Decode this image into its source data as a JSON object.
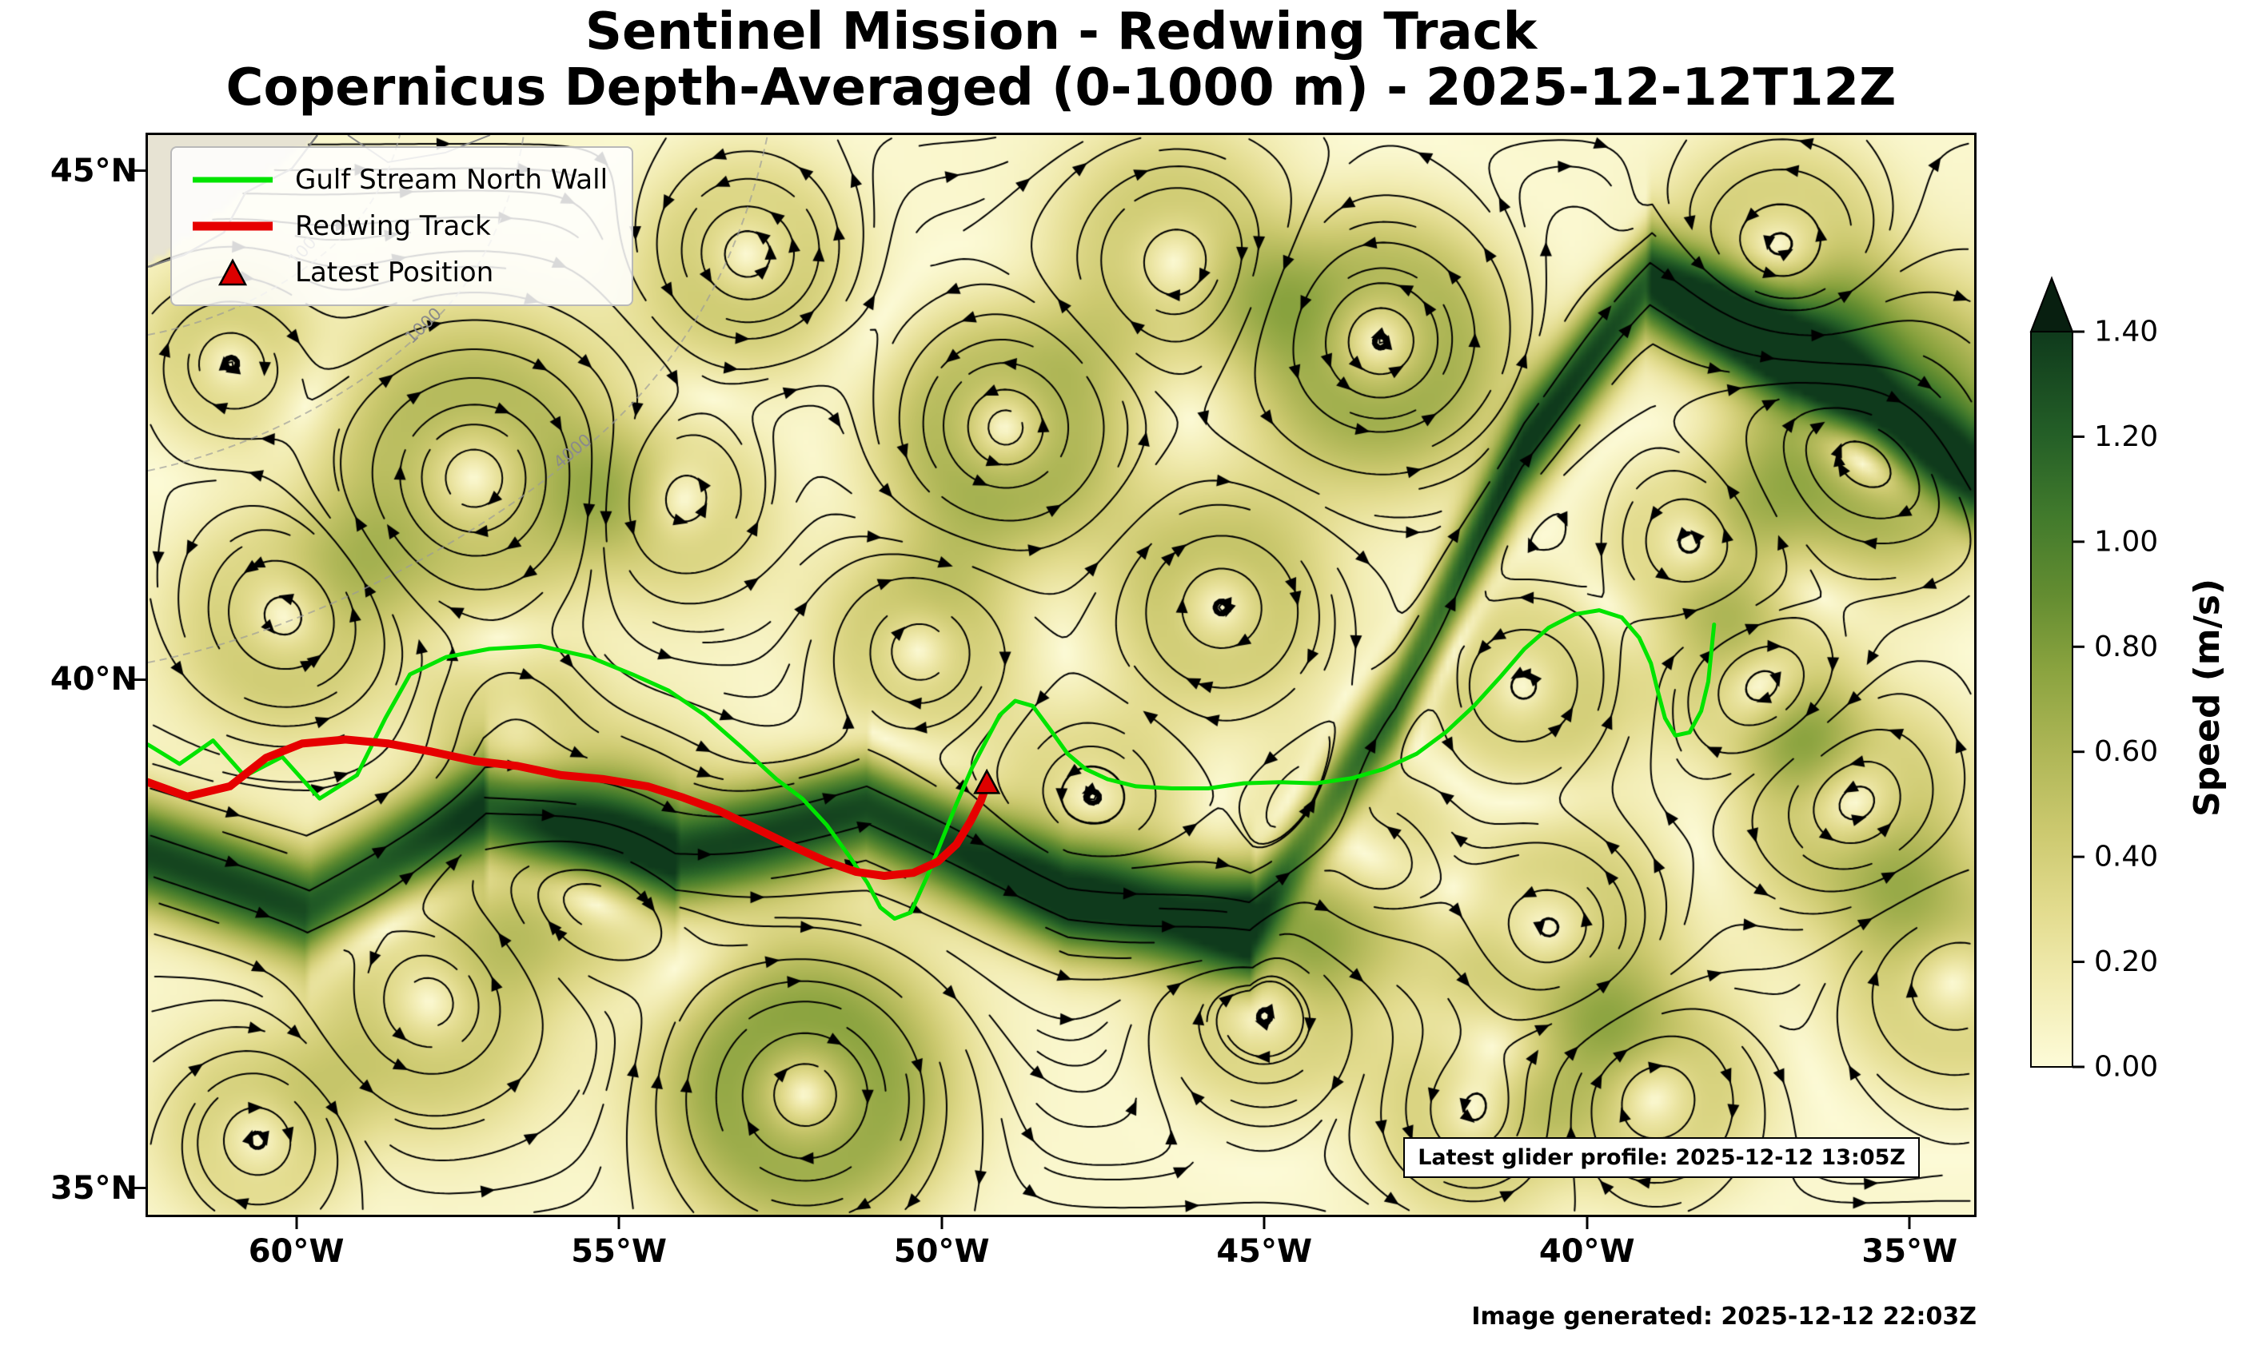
{
  "title": {
    "line1": "Sentinel Mission - Redwing Track",
    "line2": "Copernicus Depth-Averaged (0-1000 m) - 2025-12-12T12Z"
  },
  "legend": {
    "items": [
      {
        "label": "Gulf Stream North Wall",
        "type": "line",
        "color": "#00e400"
      },
      {
        "label": "Redwing Track",
        "type": "line",
        "color": "#e60000"
      },
      {
        "label": "Latest Position",
        "type": "triangle",
        "color": "#dd0000"
      }
    ]
  },
  "axes": {
    "x_ticks": [
      "60°W",
      "55°W",
      "50°W",
      "45°W",
      "40°W",
      "35°W"
    ],
    "x_tick_lons": [
      60,
      55,
      50,
      45,
      40,
      35
    ],
    "y_ticks": [
      "45°N",
      "40°N",
      "35°N"
    ],
    "y_tick_lats": [
      45,
      40,
      35
    ],
    "lon_left_w": 62.3,
    "lon_right_w": 34.0,
    "lat_top_n": 45.35,
    "lat_bottom_n": 34.74
  },
  "colorbar": {
    "label": "Speed (m/s)",
    "tick_labels": [
      "0.00",
      "0.20",
      "0.40",
      "0.60",
      "0.80",
      "1.00",
      "1.20",
      "1.40"
    ],
    "tick_values": [
      0,
      0.2,
      0.4,
      0.6,
      0.8,
      1.0,
      1.2,
      1.4
    ],
    "vmax": 1.4,
    "extend": "max",
    "cmap_positions": [
      0,
      0.11,
      0.21,
      0.32,
      0.43,
      0.54,
      0.64,
      0.75,
      0.86,
      1.0
    ],
    "cmap_colors": [
      "#fdfbd8",
      "#f2ecb2",
      "#e3dc8f",
      "#ccc96f",
      "#aeb656",
      "#8aa33f",
      "#648d31",
      "#417a2c",
      "#245f27",
      "#0f3a1c"
    ],
    "over_color": "#081f10"
  },
  "annotations": {
    "glider_profile": "Latest glider profile: 2025-12-12 13:05Z",
    "generated": "Image generated: 2025-12-12 22:03Z"
  },
  "map_labels": {
    "bathy": [
      "100",
      "1000",
      "4000"
    ]
  },
  "chart_data": {
    "type": "streamline-map",
    "field": "Depth-averaged (0-1000 m) ocean current speed with streamlines",
    "title": "Sentinel Mission - Redwing Track",
    "subtitle": "Copernicus Depth-Averaged (0-1000 m) - 2025-12-12T12Z",
    "lon_range_w": [
      62.3,
      34.0
    ],
    "lat_range_n": [
      34.74,
      45.35
    ],
    "speed_scale": {
      "min": 0,
      "max": 1.4,
      "units": "m/s",
      "extend": "max"
    },
    "latest_position": {
      "lon_w": 49.3,
      "lat_n": 38.97
    },
    "gulf_stream_north_wall": [
      [
        62.3,
        39.36
      ],
      [
        61.81,
        39.17
      ],
      [
        61.29,
        39.4
      ],
      [
        60.8,
        39.05
      ],
      [
        60.22,
        39.24
      ],
      [
        59.64,
        38.83
      ],
      [
        59.06,
        39.06
      ],
      [
        58.62,
        39.62
      ],
      [
        58.24,
        40.05
      ],
      [
        57.68,
        40.22
      ],
      [
        57.01,
        40.3
      ],
      [
        56.23,
        40.33
      ],
      [
        55.45,
        40.22
      ],
      [
        54.79,
        40.05
      ],
      [
        54.23,
        39.89
      ],
      [
        53.67,
        39.65
      ],
      [
        53.11,
        39.34
      ],
      [
        52.56,
        39.02
      ],
      [
        52.16,
        38.83
      ],
      [
        51.78,
        38.57
      ],
      [
        51.44,
        38.27
      ],
      [
        51.15,
        38.0
      ],
      [
        50.95,
        37.76
      ],
      [
        50.73,
        37.65
      ],
      [
        50.48,
        37.71
      ],
      [
        50.22,
        38.07
      ],
      [
        49.99,
        38.43
      ],
      [
        49.77,
        38.78
      ],
      [
        49.53,
        39.13
      ],
      [
        49.3,
        39.41
      ],
      [
        49.1,
        39.65
      ],
      [
        48.86,
        39.79
      ],
      [
        48.59,
        39.74
      ],
      [
        48.32,
        39.51
      ],
      [
        48.05,
        39.27
      ],
      [
        47.77,
        39.12
      ],
      [
        47.43,
        39.02
      ],
      [
        46.99,
        38.95
      ],
      [
        46.43,
        38.93
      ],
      [
        45.87,
        38.93
      ],
      [
        45.32,
        38.98
      ],
      [
        44.76,
        38.99
      ],
      [
        44.2,
        38.98
      ],
      [
        43.64,
        39.03
      ],
      [
        43.15,
        39.12
      ],
      [
        42.64,
        39.27
      ],
      [
        42.19,
        39.48
      ],
      [
        41.75,
        39.74
      ],
      [
        41.35,
        40.02
      ],
      [
        40.97,
        40.3
      ],
      [
        40.59,
        40.51
      ],
      [
        40.19,
        40.64
      ],
      [
        39.81,
        40.68
      ],
      [
        39.46,
        40.61
      ],
      [
        39.19,
        40.41
      ],
      [
        39.01,
        40.16
      ],
      [
        38.9,
        39.88
      ],
      [
        38.79,
        39.62
      ],
      [
        38.63,
        39.45
      ],
      [
        38.41,
        39.48
      ],
      [
        38.23,
        39.69
      ],
      [
        38.12,
        39.98
      ],
      [
        38.03,
        40.54
      ]
    ],
    "redwing_track": [
      [
        62.3,
        38.99
      ],
      [
        61.69,
        38.85
      ],
      [
        61.03,
        38.95
      ],
      [
        60.47,
        39.23
      ],
      [
        59.91,
        39.37
      ],
      [
        59.24,
        39.41
      ],
      [
        58.57,
        39.37
      ],
      [
        57.9,
        39.29
      ],
      [
        57.24,
        39.2
      ],
      [
        56.57,
        39.15
      ],
      [
        55.9,
        39.06
      ],
      [
        55.23,
        39.02
      ],
      [
        54.56,
        38.95
      ],
      [
        54.01,
        38.84
      ],
      [
        53.45,
        38.71
      ],
      [
        52.89,
        38.54
      ],
      [
        52.34,
        38.37
      ],
      [
        51.78,
        38.21
      ],
      [
        51.33,
        38.11
      ],
      [
        50.89,
        38.07
      ],
      [
        50.44,
        38.1
      ],
      [
        50.06,
        38.21
      ],
      [
        49.77,
        38.38
      ],
      [
        49.55,
        38.61
      ],
      [
        49.39,
        38.81
      ],
      [
        49.3,
        38.97
      ]
    ]
  }
}
